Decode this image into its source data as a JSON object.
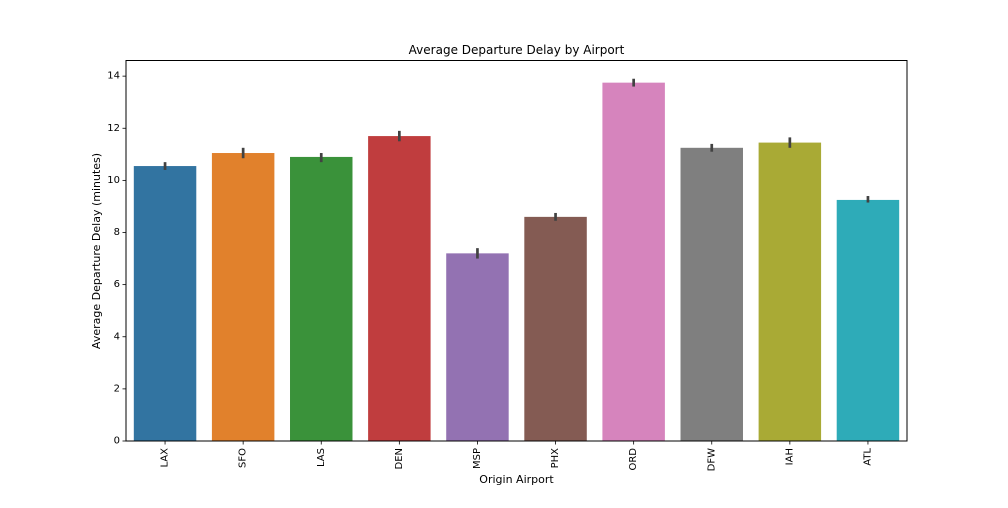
{
  "chart_data": {
    "type": "bar",
    "title": "Average Departure Delay by Airport",
    "xlabel": "Origin Airport",
    "ylabel": "Average Departure Delay (minutes)",
    "categories": [
      "LAX",
      "SFO",
      "LAS",
      "DEN",
      "MSP",
      "PHX",
      "ORD",
      "DFW",
      "IAH",
      "ATL"
    ],
    "values": [
      10.55,
      11.05,
      10.9,
      11.7,
      7.2,
      8.6,
      13.75,
      11.25,
      11.45,
      9.25
    ],
    "error_low": [
      10.4,
      10.85,
      10.7,
      11.5,
      7.0,
      8.45,
      13.6,
      11.1,
      11.25,
      9.15
    ],
    "error_high": [
      10.7,
      11.25,
      11.05,
      11.9,
      7.4,
      8.75,
      13.9,
      11.4,
      11.65,
      9.4
    ],
    "colors": [
      "#3274a1",
      "#e1812c",
      "#3a923a",
      "#c03d3e",
      "#9372b2",
      "#845b53",
      "#d684bd",
      "#7f7f7f",
      "#a9aa35",
      "#2eabb8"
    ],
    "error_bar_color": "#424242",
    "ylim": [
      0,
      14.6
    ],
    "yticks": [
      0,
      2,
      4,
      6,
      8,
      10,
      12,
      14
    ],
    "grid": false,
    "legend": "none"
  }
}
